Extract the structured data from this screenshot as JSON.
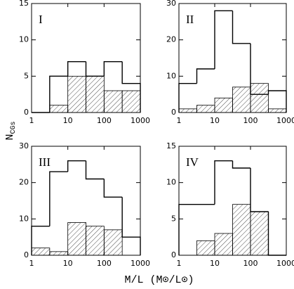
{
  "chart_data": [
    {
      "type": "histogram",
      "label": "I",
      "bins": [
        1,
        3.162,
        10,
        31.62,
        100,
        316.2,
        1000
      ],
      "xlim": [
        1,
        1000
      ],
      "xticks": [
        1,
        10,
        100,
        1000
      ],
      "xlog": true,
      "ylim": [
        0,
        15
      ],
      "yticks": [
        0,
        5,
        10,
        15
      ],
      "series": [
        {
          "style": "outline",
          "color": "#000000",
          "values": [
            0,
            5,
            7,
            5,
            7,
            4
          ]
        },
        {
          "style": "hatched",
          "color": "#000000",
          "values": [
            0,
            1,
            5,
            5,
            3,
            3
          ]
        }
      ]
    },
    {
      "type": "histogram",
      "label": "II",
      "bins": [
        1,
        3.162,
        10,
        31.62,
        100,
        316.2,
        1000
      ],
      "xlim": [
        1,
        1000
      ],
      "xticks": [
        1,
        10,
        100,
        1000
      ],
      "xlog": true,
      "ylim": [
        0,
        30
      ],
      "yticks": [
        0,
        10,
        20,
        30
      ],
      "series": [
        {
          "style": "outline",
          "color": "#000000",
          "values": [
            8,
            12,
            28,
            19,
            5,
            6
          ]
        },
        {
          "style": "hatched",
          "color": "#000000",
          "values": [
            1,
            2,
            4,
            7,
            8,
            1
          ]
        }
      ]
    },
    {
      "type": "histogram",
      "label": "III",
      "bins": [
        1,
        3.162,
        10,
        31.62,
        100,
        316.2,
        1000
      ],
      "xlim": [
        1,
        1000
      ],
      "xticks": [
        1,
        10,
        100,
        1000
      ],
      "xlog": true,
      "ylim": [
        0,
        30
      ],
      "yticks": [
        0,
        10,
        20,
        30
      ],
      "series": [
        {
          "style": "outline",
          "color": "#000000",
          "values": [
            8,
            23,
            26,
            21,
            16,
            5
          ]
        },
        {
          "style": "hatched",
          "color": "#000000",
          "values": [
            2,
            1,
            9,
            8,
            7,
            0
          ]
        }
      ]
    },
    {
      "type": "histogram",
      "label": "IV",
      "bins": [
        1,
        3.162,
        10,
        31.62,
        100,
        316.2,
        1000
      ],
      "xlim": [
        1,
        1000
      ],
      "xticks": [
        1,
        10,
        100,
        1000
      ],
      "xlog": true,
      "ylim": [
        0,
        15
      ],
      "yticks": [
        0,
        5,
        10,
        15
      ],
      "series": [
        {
          "style": "outline",
          "color": "#000000",
          "values": [
            7,
            7,
            13,
            12,
            6,
            0
          ]
        },
        {
          "style": "hatched",
          "color": "#000000",
          "values": [
            0,
            2,
            3,
            7,
            6,
            0
          ]
        }
      ]
    }
  ],
  "xlabel": "M/L (M⊙/L⊙)",
  "ylabel": {
    "main": "N",
    "sub": "CGs"
  }
}
